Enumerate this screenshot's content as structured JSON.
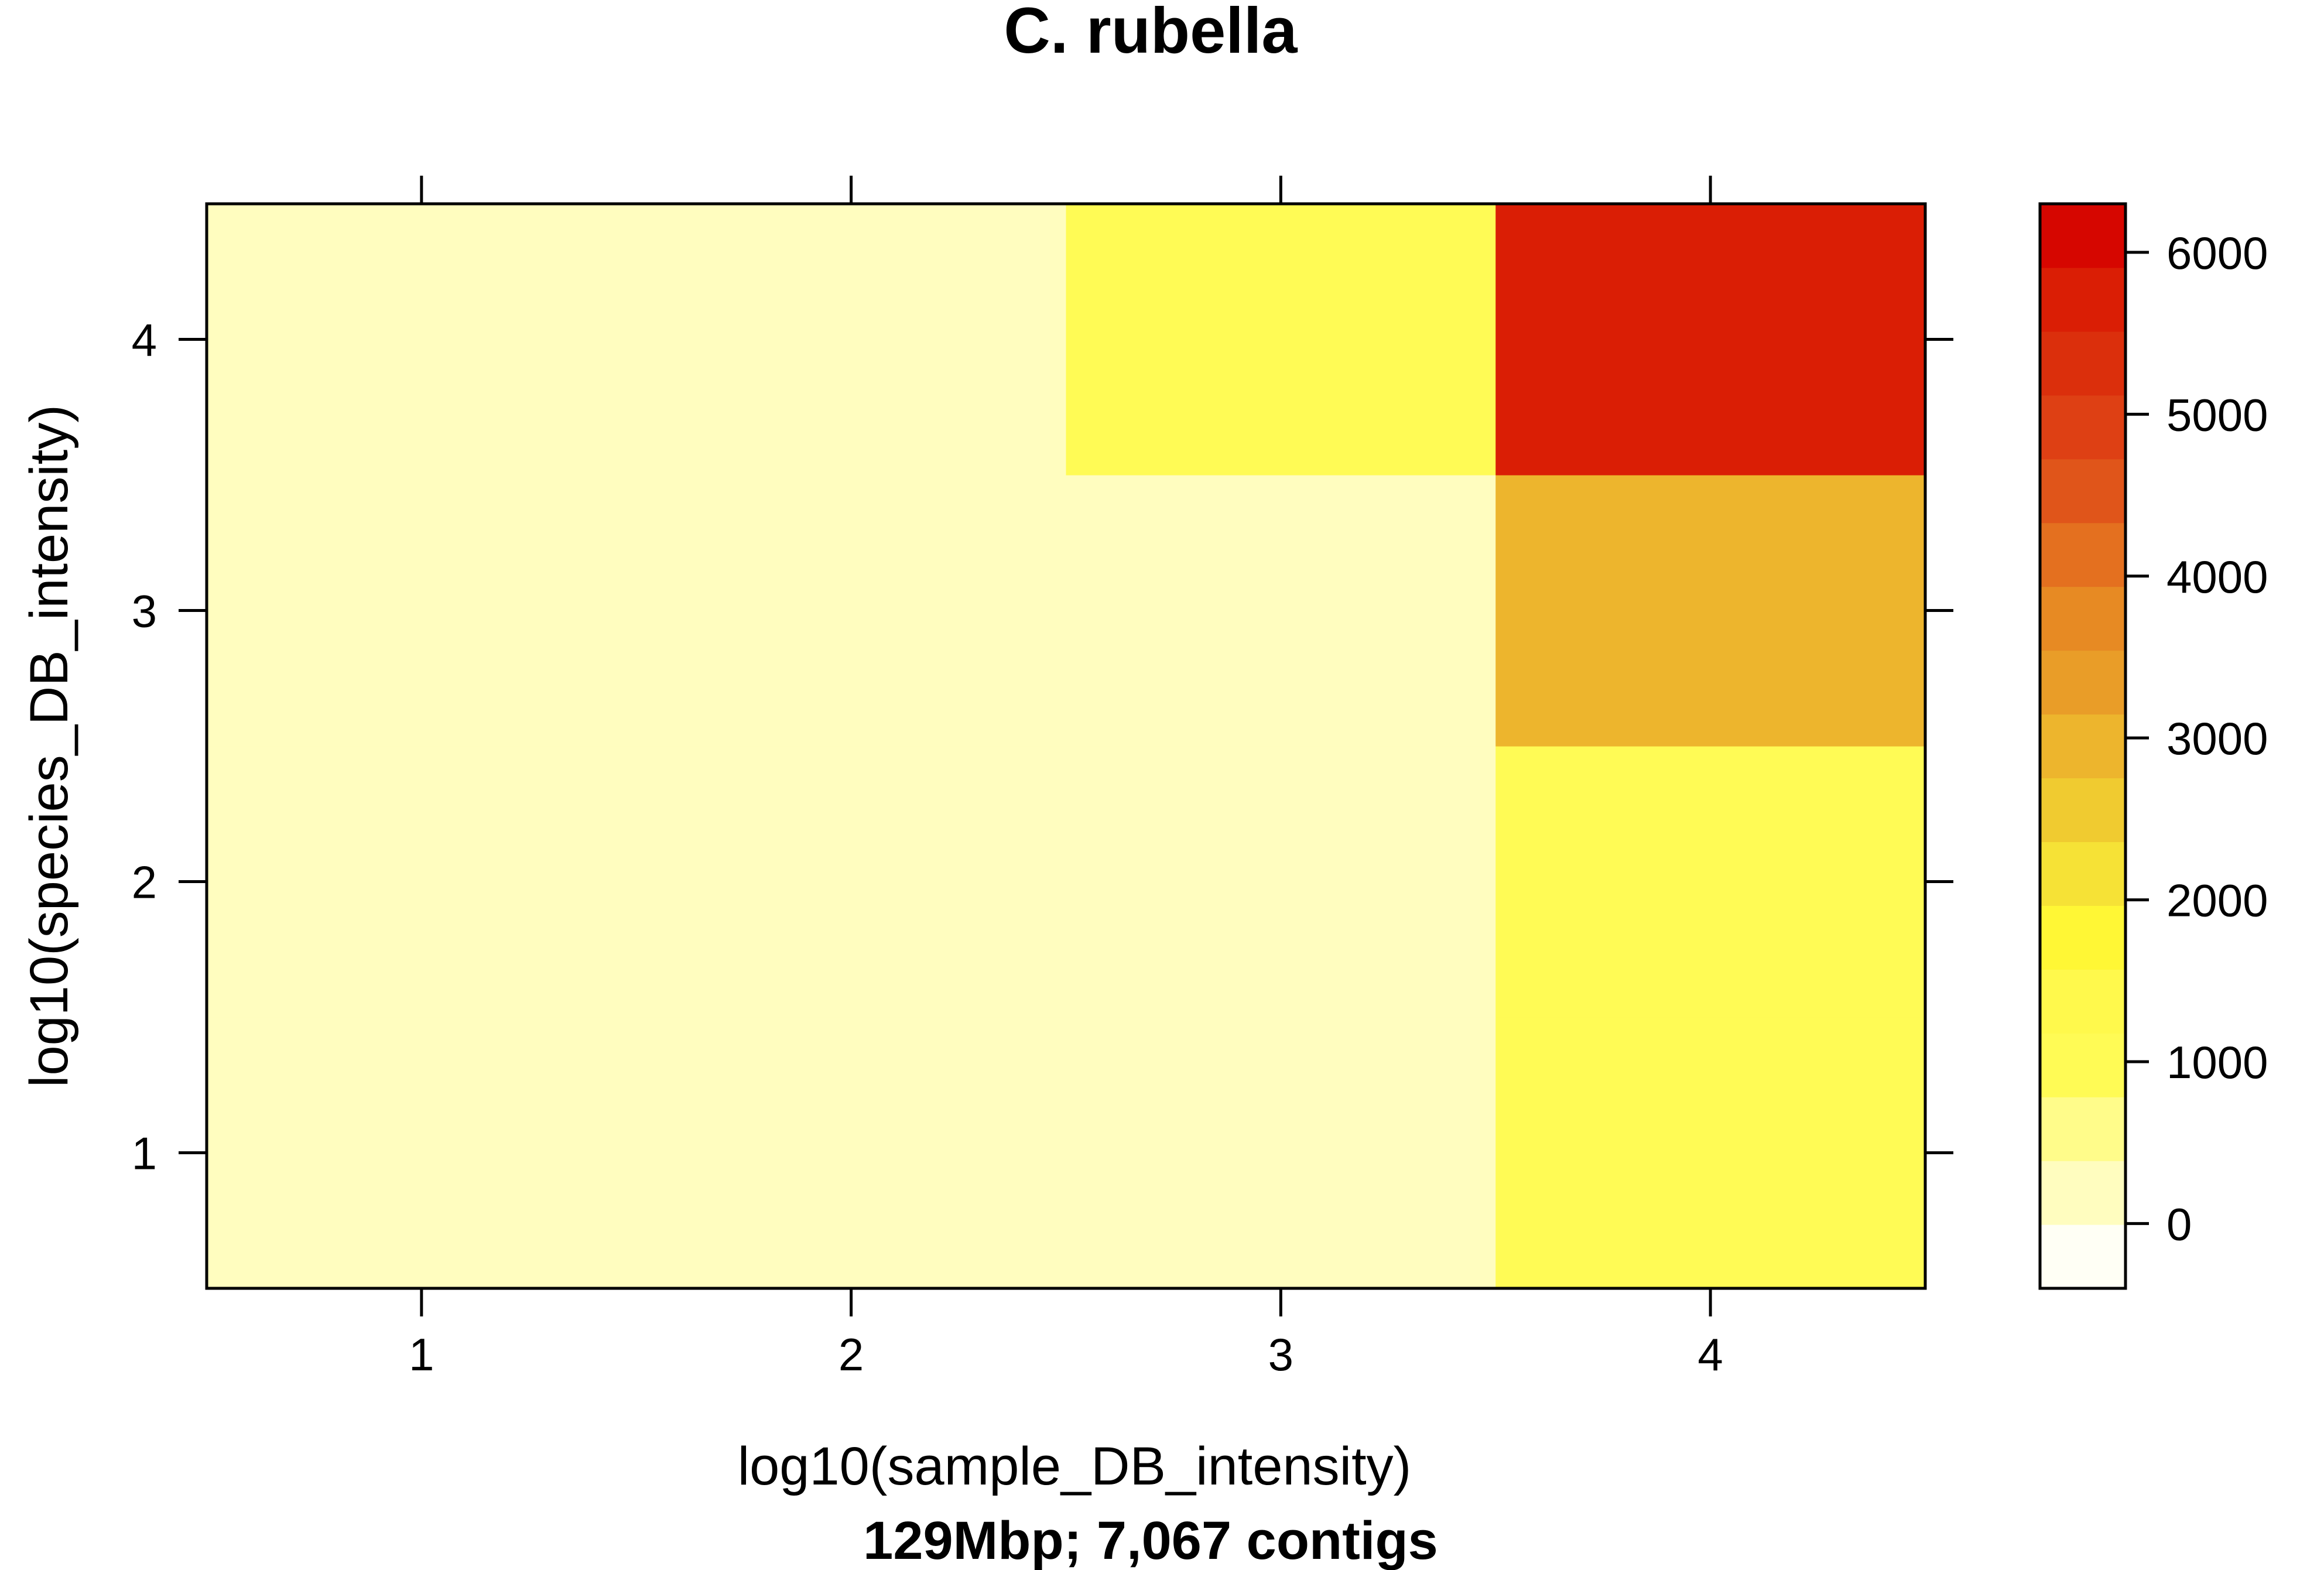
{
  "chart_data": {
    "type": "heatmap",
    "title": "C. rubella",
    "xlabel": "log10(sample_DB_intensity)",
    "ylabel": "log10(species_DB_intensity)",
    "subtitle": "129Mbp; 7,067 contigs",
    "x_categories": [
      "1",
      "2",
      "3",
      "4"
    ],
    "y_categories": [
      "1",
      "2",
      "3",
      "4"
    ],
    "values": [
      [
        0,
        200,
        300,
        1100
      ],
      [
        0,
        0,
        300,
        1100
      ],
      [
        0,
        300,
        300,
        2900
      ],
      [
        0,
        300,
        1000,
        5900
      ]
    ],
    "colorbar": {
      "ticks": [
        0,
        1000,
        2000,
        3000,
        4000,
        5000,
        6000
      ],
      "tick_labels": [
        "0",
        "1000",
        "2000",
        "3000",
        "4000",
        "5000",
        "6000"
      ],
      "range": [
        -400,
        6300
      ],
      "colors": [
        "#FFFFF5",
        "#FFFDBF",
        "#FFFC8A",
        "#FFFB55",
        "#FFF94C",
        "#FFF735",
        "#F6E236",
        "#F0CB30",
        "#EDB52D",
        "#E99D28",
        "#E78A23",
        "#E4701F",
        "#E0551A",
        "#DE4014",
        "#DB2F0C",
        "#DA1E05",
        "#D60600"
      ]
    },
    "grid": false,
    "legend": "right"
  }
}
